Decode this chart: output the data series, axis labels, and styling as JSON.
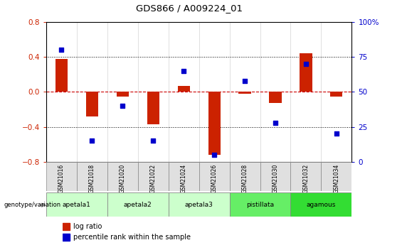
{
  "title": "GDS866 / A009224_01",
  "samples": [
    "GSM21016",
    "GSM21018",
    "GSM21020",
    "GSM21022",
    "GSM21024",
    "GSM21026",
    "GSM21028",
    "GSM21030",
    "GSM21032",
    "GSM21034"
  ],
  "log_ratio": [
    0.38,
    -0.28,
    -0.05,
    -0.37,
    0.07,
    -0.72,
    -0.02,
    -0.13,
    0.44,
    -0.05
  ],
  "percentile_rank": [
    80,
    15,
    40,
    15,
    65,
    5,
    58,
    28,
    70,
    20
  ],
  "ylim_left": [
    -0.8,
    0.8
  ],
  "ylim_right": [
    0,
    100
  ],
  "yticks_left": [
    -0.8,
    -0.4,
    0.0,
    0.4,
    0.8
  ],
  "yticks_right": [
    0,
    25,
    50,
    75,
    100
  ],
  "hlines": [
    -0.4,
    0.0,
    0.4
  ],
  "bar_color": "#cc2200",
  "dot_color": "#0000cc",
  "bar_width": 0.4,
  "dot_size": 25,
  "group_label_left": "genotype/variation",
  "legend_bar": "log ratio",
  "legend_dot": "percentile rank within the sample",
  "plot_bg": "#ffffff",
  "tick_color_left": "#cc2200",
  "tick_color_right": "#0000cc",
  "group_defs": [
    {
      "label": "apetala1",
      "start": 0,
      "end": 1,
      "color": "#ccffcc"
    },
    {
      "label": "apetala2",
      "start": 2,
      "end": 3,
      "color": "#ccffcc"
    },
    {
      "label": "apetala3",
      "start": 4,
      "end": 5,
      "color": "#ccffcc"
    },
    {
      "label": "pistillata",
      "start": 6,
      "end": 7,
      "color": "#66ee66"
    },
    {
      "label": "agamous",
      "start": 8,
      "end": 9,
      "color": "#33dd33"
    }
  ]
}
